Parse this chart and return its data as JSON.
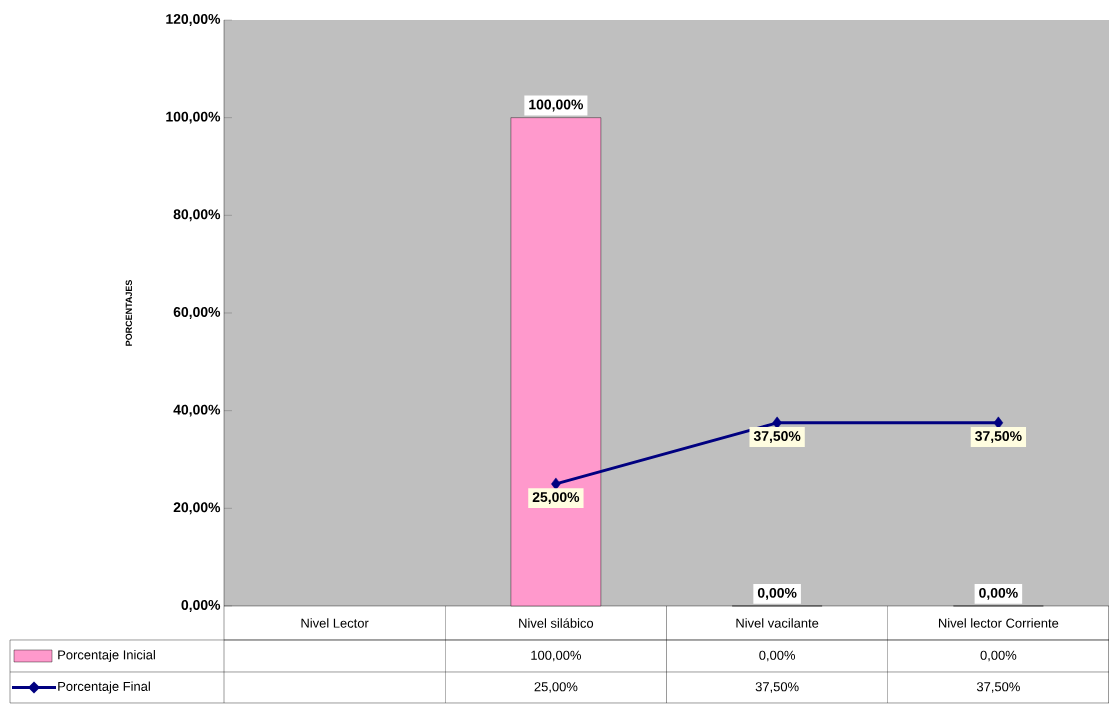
{
  "chart_data": {
    "type": "bar",
    "categories": [
      "Nivel Lector",
      "Nivel silábico",
      "Nivel vacilante",
      "Nivel lector Corriente"
    ],
    "ylabel": "PORCENTAJES",
    "ylim": [
      0,
      120
    ],
    "yticks": [
      {
        "value": 0,
        "label": "0,00%"
      },
      {
        "value": 20,
        "label": "20,00%"
      },
      {
        "value": 40,
        "label": "40,00%"
      },
      {
        "value": 60,
        "label": "60,00%"
      },
      {
        "value": 80,
        "label": "80,00%"
      },
      {
        "value": 100,
        "label": "100,00%"
      },
      {
        "value": 120,
        "label": "120,00%"
      }
    ],
    "series": [
      {
        "name": "Porcentaje Inicial",
        "color": "#ff99cc",
        "values": [
          null,
          100,
          0,
          0
        ],
        "value_labels": [
          null,
          "100,00%",
          "0,00%",
          "0,00%"
        ]
      },
      {
        "name": "Porcentaje Final",
        "type": "line",
        "color": "#000080",
        "marker": "diamond",
        "values": [
          null,
          25,
          37.5,
          37.5
        ],
        "value_labels": [
          null,
          "25,00%",
          "37,50%",
          "37,50%"
        ]
      }
    ],
    "legend": "bottom"
  }
}
